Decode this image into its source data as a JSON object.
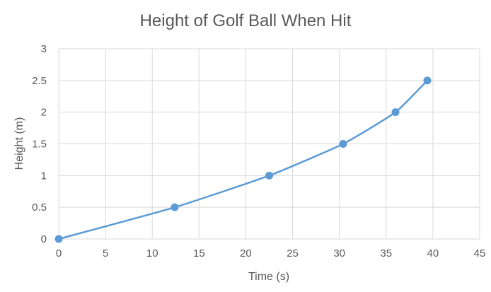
{
  "chart_data": {
    "type": "scatter",
    "title": "Height of Golf Ball When Hit",
    "xlabel": "Time (s)",
    "ylabel": "Height (m)",
    "xlim": [
      0,
      45
    ],
    "ylim": [
      0,
      3
    ],
    "x_ticks": [
      "0",
      "5",
      "10",
      "15",
      "20",
      "25",
      "30",
      "35",
      "40",
      "45"
    ],
    "y_ticks": [
      "0",
      "0.5",
      "1",
      "1.5",
      "2",
      "2.5",
      "3"
    ],
    "grid": true,
    "legend": "none",
    "series": [
      {
        "name": "Height",
        "x": [
          0,
          12.4,
          22.5,
          30.4,
          36.0,
          39.4
        ],
        "y": [
          0,
          0.5,
          1.0,
          1.5,
          2.0,
          2.5
        ],
        "color": "#5B9BD5",
        "marker": "circle",
        "line": "smooth"
      }
    ]
  }
}
